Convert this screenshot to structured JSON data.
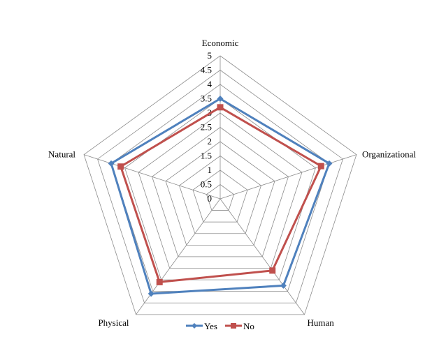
{
  "chart_data": {
    "type": "radar",
    "title": "",
    "categories": [
      "Economic",
      "Organizational",
      "Human",
      "Physical",
      "Natural"
    ],
    "series": [
      {
        "name": "Yes",
        "color": "#4F81BD",
        "marker": "diamond",
        "values": [
          3.5,
          4.0,
          3.75,
          4.1,
          4.0
        ]
      },
      {
        "name": "No",
        "color": "#C0504D",
        "marker": "square",
        "values": [
          3.2,
          3.7,
          3.1,
          3.6,
          3.65
        ]
      }
    ],
    "rlim": [
      0,
      5
    ],
    "tick_labels": [
      "0",
      "0.5",
      "1",
      "1.5",
      "2",
      "2.5",
      "3",
      "3.5",
      "4",
      "4.5",
      "5"
    ],
    "grid": true,
    "legend_position": "bottom"
  }
}
